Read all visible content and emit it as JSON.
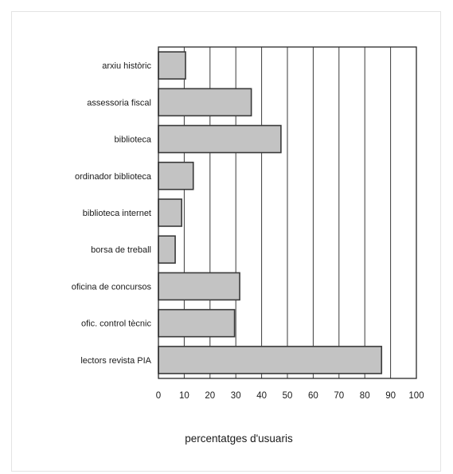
{
  "chart_data": {
    "type": "bar",
    "orientation": "horizontal",
    "categories": [
      "arxiu històric",
      "assessoria fiscal",
      "biblioteca",
      "ordinador biblioteca",
      "biblioteca internet",
      "borsa de treball",
      "oficina de concursos",
      "ofic. control tècnic",
      "lectors revista PIA"
    ],
    "values": [
      10.5,
      36,
      47.5,
      13.5,
      9,
      6.5,
      31.5,
      29.5,
      86.5
    ],
    "title": "",
    "xlabel": "percentatges d'usuaris",
    "ylabel": "",
    "xlim": [
      0,
      100
    ],
    "xticks": [
      "0",
      "10",
      "20",
      "30",
      "40",
      "50",
      "60",
      "70",
      "80",
      "90",
      "100"
    ],
    "grid": "vertical",
    "bar_color": "#c3c3c3",
    "bar_edge_color": "#3a3a3a"
  }
}
